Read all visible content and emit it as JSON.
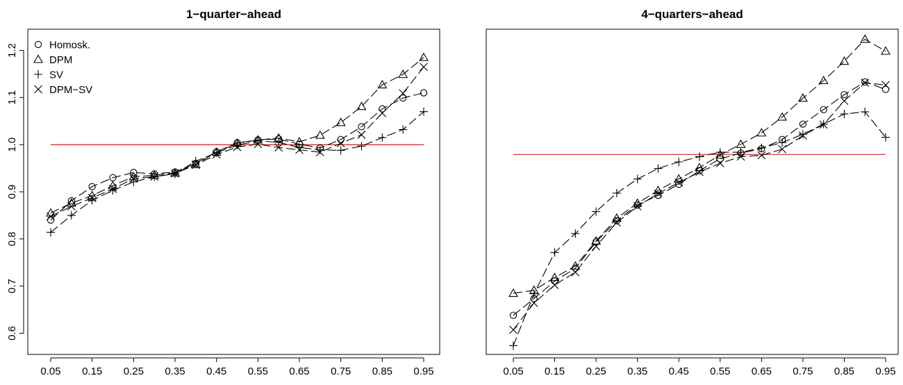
{
  "chart_data": [
    {
      "type": "line",
      "title": "1−quarter−ahead",
      "xlabel": "",
      "ylabel": "",
      "x": [
        0.05,
        0.1,
        0.15,
        0.2,
        0.25,
        0.3,
        0.35,
        0.4,
        0.45,
        0.5,
        0.55,
        0.6,
        0.65,
        0.7,
        0.75,
        0.8,
        0.85,
        0.9,
        0.95
      ],
      "xtick_labels": [
        "0.05",
        "0.15",
        "0.25",
        "0.35",
        "0.45",
        "0.55",
        "0.65",
        "0.75",
        "0.85",
        "0.95"
      ],
      "xticks": [
        0.05,
        0.15,
        0.25,
        0.35,
        0.45,
        0.55,
        0.65,
        0.75,
        0.85,
        0.95
      ],
      "xlim": [
        0.05,
        0.95
      ],
      "yticks": [
        0.6,
        0.7,
        0.8,
        0.9,
        1.0,
        1.1,
        1.2
      ],
      "ytick_labels": [
        "0.6",
        "0.7",
        "0.8",
        "0.9",
        "1.0",
        "1.1",
        "1.2"
      ],
      "ylim": [
        0.555,
        1.245
      ],
      "reference_line": {
        "y": 1.0,
        "color": "#d00000"
      },
      "legend": {
        "position": "top-left",
        "show": true
      },
      "series": [
        {
          "name": "Homosk.",
          "marker": "circle",
          "values": [
            0.84,
            0.881,
            0.911,
            0.93,
            0.941,
            0.938,
            0.942,
            0.96,
            0.985,
            1.004,
            1.01,
            1.012,
            1.001,
            0.993,
            1.011,
            1.038,
            1.076,
            1.099,
            1.11
          ]
        },
        {
          "name": "DPM",
          "marker": "triangle",
          "values": [
            0.855,
            0.876,
            0.892,
            0.913,
            0.932,
            0.935,
            0.94,
            0.958,
            0.984,
            1.003,
            1.01,
            1.014,
            1.006,
            1.02,
            1.047,
            1.081,
            1.127,
            1.149,
            1.185
          ]
        },
        {
          "name": "SV",
          "marker": "plus",
          "values": [
            0.814,
            0.85,
            0.882,
            0.903,
            0.921,
            0.932,
            0.938,
            0.965,
            0.983,
            0.999,
            1.008,
            1.005,
            0.994,
            0.989,
            0.988,
            0.997,
            1.015,
            1.032,
            1.07
          ]
        },
        {
          "name": "DPM−SV",
          "marker": "cross",
          "values": [
            0.848,
            0.869,
            0.887,
            0.906,
            0.928,
            0.932,
            0.939,
            0.957,
            0.979,
            0.995,
            1.001,
            0.994,
            0.989,
            0.984,
            1.003,
            1.021,
            1.067,
            1.109,
            1.165
          ]
        }
      ]
    },
    {
      "type": "line",
      "title": "4−quarters−ahead",
      "xlabel": "",
      "ylabel": "",
      "x": [
        0.05,
        0.1,
        0.15,
        0.2,
        0.25,
        0.3,
        0.35,
        0.4,
        0.45,
        0.5,
        0.55,
        0.6,
        0.65,
        0.7,
        0.75,
        0.8,
        0.85,
        0.9,
        0.95
      ],
      "xtick_labels": [
        "0.05",
        "0.15",
        "0.25",
        "0.35",
        "0.45",
        "0.55",
        "0.65",
        "0.75",
        "0.85",
        "0.95"
      ],
      "xticks": [
        0.05,
        0.15,
        0.25,
        0.35,
        0.45,
        0.55,
        0.65,
        0.75,
        0.85,
        0.95
      ],
      "xlim": [
        0.05,
        0.95
      ],
      "yticks": [],
      "ytick_labels": [],
      "ylim": [
        0.545,
        1.285
      ],
      "reference_line": {
        "y": 1.0,
        "color": "#d00000"
      },
      "legend": {
        "show": false
      },
      "series": [
        {
          "name": "Homosk.",
          "marker": "circle",
          "values": [
            0.634,
            0.672,
            0.712,
            0.741,
            0.801,
            0.849,
            0.885,
            0.907,
            0.932,
            0.963,
            0.99,
            1.003,
            1.013,
            1.034,
            1.069,
            1.102,
            1.136,
            1.165,
            1.148
          ]
        },
        {
          "name": "DPM",
          "marker": "triangle",
          "values": [
            0.684,
            0.691,
            0.72,
            0.746,
            0.803,
            0.855,
            0.889,
            0.918,
            0.944,
            0.97,
            0.999,
            1.023,
            1.049,
            1.085,
            1.128,
            1.168,
            1.212,
            1.262,
            1.235
          ]
        },
        {
          "name": "SV",
          "marker": "plus",
          "values": [
            0.565,
            0.683,
            0.777,
            0.82,
            0.87,
            0.912,
            0.944,
            0.968,
            0.983,
            0.995,
            1.005,
            1.005,
            1.015,
            1.027,
            1.046,
            1.069,
            1.092,
            1.097,
            1.039
          ]
        },
        {
          "name": "DPM−SV",
          "marker": "cross",
          "values": [
            0.601,
            0.662,
            0.703,
            0.732,
            0.791,
            0.845,
            0.882,
            0.911,
            0.936,
            0.96,
            0.98,
            0.995,
            0.998,
            1.012,
            1.043,
            1.068,
            1.122,
            1.163,
            1.158
          ]
        }
      ]
    }
  ]
}
